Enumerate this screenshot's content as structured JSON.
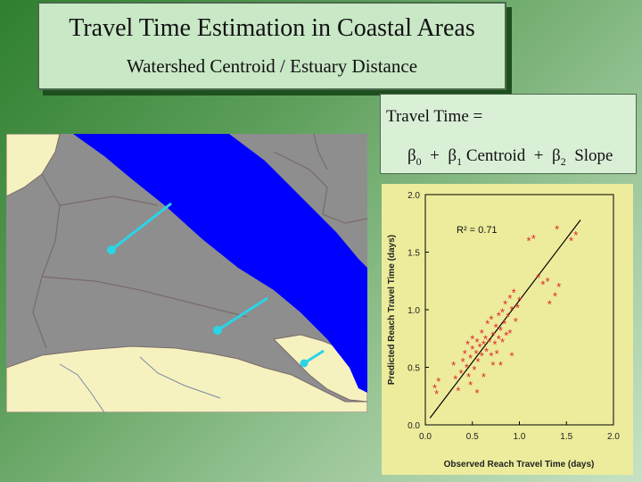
{
  "title": {
    "main": "Travel  Time  Estimation in Coastal Areas",
    "subtitle": "Watershed  Centroid / Estuary  Distance"
  },
  "equation": {
    "line1": "Travel Time  =",
    "b0": "β",
    "b0_sub": "0",
    "plus1": "  +  ",
    "b1": "β",
    "b1_sub": "1",
    "term1": " Centroid  +  ",
    "b2": "β",
    "b2_sub": "2",
    "term2": "  Slope"
  },
  "map": {
    "description_colors": {
      "land": "#8e8e8e",
      "water": "#0000ff",
      "lowland": "#f6f2c0",
      "connector": "#2ad4e6",
      "boundary": "#7a6a6a"
    }
  },
  "chart_data": {
    "type": "scatter",
    "title": "",
    "annotation": "R² = 0.71",
    "xlabel": "Observed Reach Travel Time (days)",
    "ylabel": "Predicted Reach Travel Time (days)",
    "xlim": [
      0.0,
      2.0
    ],
    "ylim": [
      0.0,
      2.0
    ],
    "xticks": [
      "0.0",
      "0.5",
      "1.0",
      "1.5",
      "2.0"
    ],
    "yticks": [
      "0.0",
      "0.5",
      "1.0",
      "1.5",
      "2.0"
    ],
    "marker_color": "#e0242a",
    "fit_line": {
      "x": [
        0.05,
        1.65
      ],
      "y": [
        0.06,
        1.78
      ]
    },
    "points": [
      [
        0.1,
        0.32
      ],
      [
        0.12,
        0.27
      ],
      [
        0.14,
        0.38
      ],
      [
        0.3,
        0.52
      ],
      [
        0.32,
        0.4
      ],
      [
        0.35,
        0.3
      ],
      [
        0.38,
        0.45
      ],
      [
        0.4,
        0.55
      ],
      [
        0.42,
        0.62
      ],
      [
        0.44,
        0.5
      ],
      [
        0.45,
        0.7
      ],
      [
        0.46,
        0.42
      ],
      [
        0.48,
        0.58
      ],
      [
        0.5,
        0.66
      ],
      [
        0.5,
        0.75
      ],
      [
        0.52,
        0.48
      ],
      [
        0.54,
        0.62
      ],
      [
        0.55,
        0.72
      ],
      [
        0.56,
        0.55
      ],
      [
        0.58,
        0.68
      ],
      [
        0.6,
        0.6
      ],
      [
        0.6,
        0.8
      ],
      [
        0.62,
        0.7
      ],
      [
        0.64,
        0.75
      ],
      [
        0.65,
        0.64
      ],
      [
        0.66,
        0.88
      ],
      [
        0.68,
        0.72
      ],
      [
        0.7,
        0.6
      ],
      [
        0.7,
        0.92
      ],
      [
        0.72,
        0.78
      ],
      [
        0.74,
        0.7
      ],
      [
        0.75,
        0.85
      ],
      [
        0.76,
        0.62
      ],
      [
        0.78,
        0.95
      ],
      [
        0.78,
        0.75
      ],
      [
        0.8,
        0.82
      ],
      [
        0.8,
        0.52
      ],
      [
        0.82,
        0.98
      ],
      [
        0.82,
        0.72
      ],
      [
        0.84,
        0.88
      ],
      [
        0.85,
        1.05
      ],
      [
        0.86,
        0.78
      ],
      [
        0.88,
        0.94
      ],
      [
        0.9,
        1.1
      ],
      [
        0.9,
        0.8
      ],
      [
        0.92,
        1.0
      ],
      [
        0.94,
        1.15
      ],
      [
        0.96,
        0.9
      ],
      [
        0.98,
        1.02
      ],
      [
        1.0,
        1.08
      ],
      [
        1.1,
        1.6
      ],
      [
        1.15,
        1.62
      ],
      [
        1.2,
        1.28
      ],
      [
        1.25,
        1.22
      ],
      [
        1.3,
        1.25
      ],
      [
        1.32,
        1.05
      ],
      [
        1.38,
        1.12
      ],
      [
        1.42,
        1.2
      ],
      [
        1.4,
        1.7
      ],
      [
        1.55,
        1.6
      ],
      [
        1.6,
        1.65
      ],
      [
        0.62,
        0.42
      ],
      [
        0.48,
        0.35
      ],
      [
        0.55,
        0.28
      ],
      [
        0.92,
        0.6
      ],
      [
        0.72,
        0.52
      ]
    ]
  }
}
